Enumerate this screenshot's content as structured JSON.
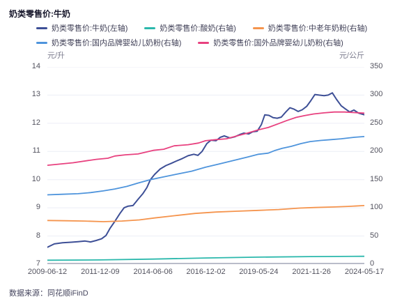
{
  "title": "奶类零售价:牛奶",
  "footer": {
    "source_label": "数据来源：同花顺iFinD"
  },
  "axes_units": {
    "left": "元/升",
    "right": "元/公斤"
  },
  "chart_data": {
    "type": "line",
    "title": "奶类零售价:牛奶",
    "grid": true,
    "legend_position": "top",
    "x_ticks": [
      "2009-06-12",
      "2011-12-09",
      "2014-06-06",
      "2016-12-02",
      "2019-05-24",
      "2021-11-26",
      "2024-05-17"
    ],
    "left_axis": {
      "unit": "元/升",
      "min": 7,
      "max": 14,
      "ticks": [
        14,
        13,
        12,
        11,
        10,
        9,
        8,
        7
      ]
    },
    "right_axis": {
      "unit": "元/公斤",
      "min": 0,
      "max": 350,
      "ticks": [
        350,
        300,
        250,
        200,
        150,
        100,
        50,
        0
      ]
    },
    "series": [
      {
        "name": "奶类零售价:牛奶(左轴)",
        "axis": "left",
        "color": "#3D4F96",
        "width": 2,
        "points": [
          [
            0,
            7.6
          ],
          [
            0.022,
            7.72
          ],
          [
            0.048,
            7.76
          ],
          [
            0.075,
            7.78
          ],
          [
            0.097,
            7.8
          ],
          [
            0.119,
            7.82
          ],
          [
            0.136,
            7.79
          ],
          [
            0.154,
            7.84
          ],
          [
            0.171,
            7.9
          ],
          [
            0.185,
            8.02
          ],
          [
            0.198,
            8.28
          ],
          [
            0.213,
            8.52
          ],
          [
            0.229,
            8.8
          ],
          [
            0.242,
            9.0
          ],
          [
            0.255,
            9.06
          ],
          [
            0.27,
            9.08
          ],
          [
            0.286,
            9.3
          ],
          [
            0.301,
            9.5
          ],
          [
            0.314,
            9.72
          ],
          [
            0.325,
            10.0
          ],
          [
            0.338,
            10.18
          ],
          [
            0.356,
            10.38
          ],
          [
            0.374,
            10.5
          ],
          [
            0.391,
            10.58
          ],
          [
            0.407,
            10.66
          ],
          [
            0.426,
            10.75
          ],
          [
            0.444,
            10.85
          ],
          [
            0.462,
            10.9
          ],
          [
            0.475,
            10.86
          ],
          [
            0.488,
            11.0
          ],
          [
            0.503,
            11.28
          ],
          [
            0.516,
            11.4
          ],
          [
            0.532,
            11.38
          ],
          [
            0.545,
            11.5
          ],
          [
            0.558,
            11.55
          ],
          [
            0.576,
            11.48
          ],
          [
            0.591,
            11.52
          ],
          [
            0.607,
            11.6
          ],
          [
            0.62,
            11.65
          ],
          [
            0.635,
            11.62
          ],
          [
            0.648,
            11.7
          ],
          [
            0.662,
            11.72
          ],
          [
            0.675,
            11.95
          ],
          [
            0.686,
            12.3
          ],
          [
            0.699,
            12.28
          ],
          [
            0.712,
            12.2
          ],
          [
            0.725,
            12.18
          ],
          [
            0.738,
            12.22
          ],
          [
            0.752,
            12.4
          ],
          [
            0.765,
            12.55
          ],
          [
            0.778,
            12.5
          ],
          [
            0.791,
            12.42
          ],
          [
            0.804,
            12.48
          ],
          [
            0.818,
            12.6
          ],
          [
            0.831,
            12.8
          ],
          [
            0.844,
            13.02
          ],
          [
            0.857,
            13.0
          ],
          [
            0.873,
            12.98
          ],
          [
            0.886,
            13.0
          ],
          [
            0.899,
            13.08
          ],
          [
            0.912,
            12.85
          ],
          [
            0.927,
            12.62
          ],
          [
            0.941,
            12.5
          ],
          [
            0.954,
            12.4
          ],
          [
            0.967,
            12.47
          ],
          [
            0.982,
            12.36
          ],
          [
            1,
            12.3
          ]
        ]
      },
      {
        "name": "奶类零售价:酸奶(右轴)",
        "axis": "right",
        "color": "#2BB8AC",
        "width": 1.8,
        "points": [
          [
            0,
            7
          ],
          [
            0.165,
            7.5
          ],
          [
            0.334,
            9
          ],
          [
            0.499,
            11
          ],
          [
            0.666,
            12.5
          ],
          [
            0.829,
            13.5
          ],
          [
            1,
            14
          ]
        ]
      },
      {
        "name": "奶类零售价:中老年奶粉(右轴)",
        "axis": "right",
        "color": "#F5944D",
        "width": 1.8,
        "points": [
          [
            0,
            77.5
          ],
          [
            0.059,
            77
          ],
          [
            0.114,
            76.5
          ],
          [
            0.176,
            75.5
          ],
          [
            0.235,
            76.5
          ],
          [
            0.29,
            78.5
          ],
          [
            0.338,
            82
          ],
          [
            0.4,
            86
          ],
          [
            0.466,
            90
          ],
          [
            0.532,
            92.5
          ],
          [
            0.598,
            94
          ],
          [
            0.666,
            95.5
          ],
          [
            0.73,
            97
          ],
          [
            0.796,
            99.5
          ],
          [
            0.844,
            100.5
          ],
          [
            0.905,
            101.5
          ],
          [
            0.949,
            102.5
          ],
          [
            1,
            104
          ]
        ]
      },
      {
        "name": "奶类零售价:国内品牌婴幼儿奶粉(右轴)",
        "axis": "right",
        "color": "#4E94DC",
        "width": 1.8,
        "points": [
          [
            0,
            123
          ],
          [
            0.048,
            124
          ],
          [
            0.097,
            125
          ],
          [
            0.136,
            127
          ],
          [
            0.176,
            130
          ],
          [
            0.213,
            133.5
          ],
          [
            0.251,
            138
          ],
          [
            0.286,
            144
          ],
          [
            0.325,
            150
          ],
          [
            0.367,
            155
          ],
          [
            0.411,
            160
          ],
          [
            0.455,
            165
          ],
          [
            0.499,
            172
          ],
          [
            0.543,
            178
          ],
          [
            0.587,
            184
          ],
          [
            0.631,
            190
          ],
          [
            0.666,
            195
          ],
          [
            0.697,
            197
          ],
          [
            0.719,
            202
          ],
          [
            0.741,
            205.5
          ],
          [
            0.769,
            209
          ],
          [
            0.8,
            214
          ],
          [
            0.829,
            217.5
          ],
          [
            0.862,
            219.5
          ],
          [
            0.895,
            221
          ],
          [
            0.927,
            222.5
          ],
          [
            0.965,
            225
          ],
          [
            1,
            226.5
          ]
        ]
      },
      {
        "name": "奶类零售价:国外品牌婴幼儿奶粉(右轴)",
        "axis": "right",
        "color": "#E8417F",
        "width": 1.8,
        "points": [
          [
            0,
            175.5
          ],
          [
            0.081,
            180
          ],
          [
            0.154,
            186
          ],
          [
            0.191,
            188
          ],
          [
            0.213,
            192
          ],
          [
            0.246,
            194
          ],
          [
            0.286,
            195.5
          ],
          [
            0.334,
            202
          ],
          [
            0.367,
            204
          ],
          [
            0.4,
            210
          ],
          [
            0.444,
            212
          ],
          [
            0.477,
            215
          ],
          [
            0.499,
            219
          ],
          [
            0.532,
            221
          ],
          [
            0.565,
            222.5
          ],
          [
            0.598,
            227.5
          ],
          [
            0.631,
            232.5
          ],
          [
            0.666,
            238.5
          ],
          [
            0.697,
            242.5
          ],
          [
            0.73,
            249.5
          ],
          [
            0.756,
            255
          ],
          [
            0.785,
            260.5
          ],
          [
            0.811,
            263.5
          ],
          [
            0.84,
            266.5
          ],
          [
            0.873,
            268.5
          ],
          [
            0.905,
            270
          ],
          [
            0.938,
            270
          ],
          [
            0.967,
            269
          ],
          [
            1,
            268
          ]
        ]
      }
    ],
    "style": {
      "grid_color": "#ECEEF6",
      "axis_line_color": "#B9BCC9",
      "tick_color": "#52525E"
    }
  }
}
